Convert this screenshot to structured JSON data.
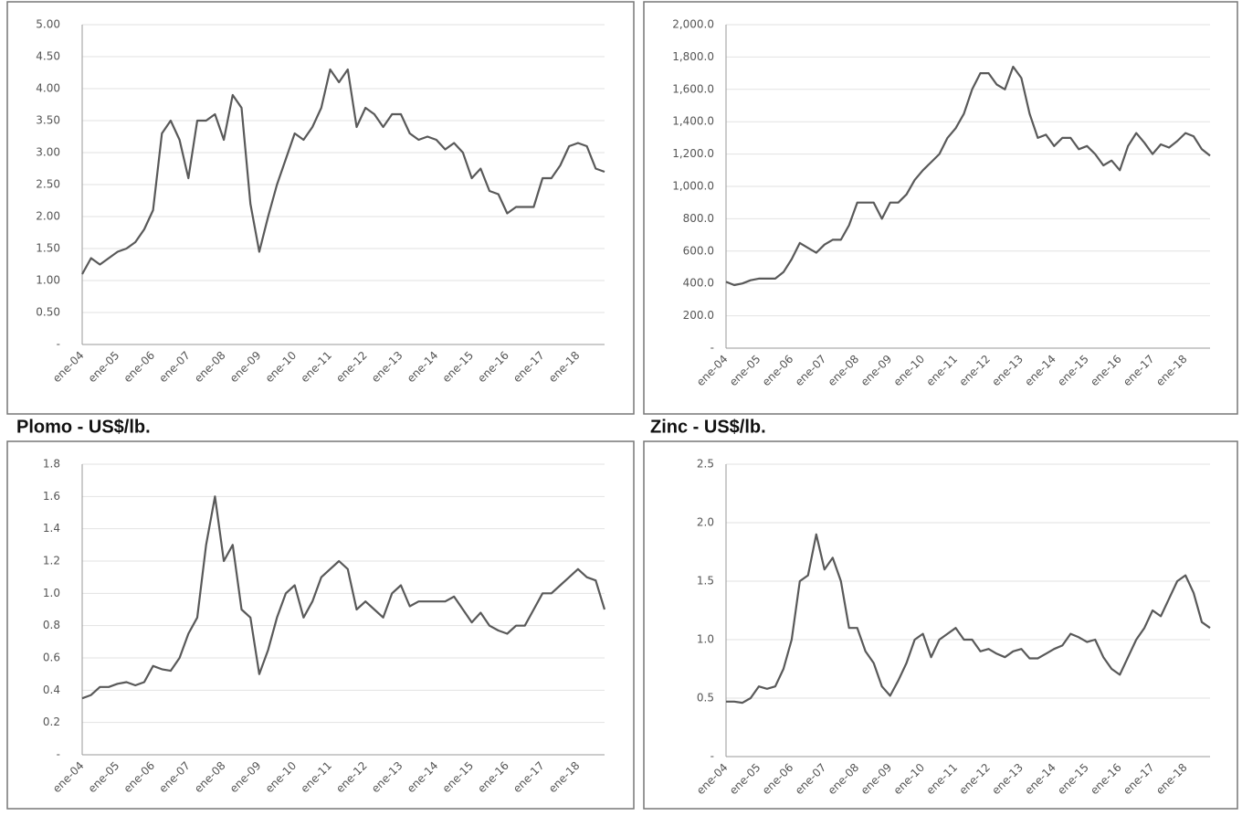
{
  "chart_data": [
    {
      "type": "line",
      "color": "#595959",
      "categories": [
        "ene-04",
        null,
        null,
        null,
        "ene-05",
        null,
        null,
        null,
        "ene-06",
        null,
        null,
        null,
        "ene-07",
        null,
        null,
        null,
        "ene-08",
        null,
        null,
        null,
        "ene-09",
        null,
        null,
        null,
        "ene-10",
        null,
        null,
        null,
        "ene-11",
        null,
        null,
        null,
        "ene-12",
        null,
        null,
        null,
        "ene-13",
        null,
        null,
        null,
        "ene-14",
        null,
        null,
        null,
        "ene-15",
        null,
        null,
        null,
        "ene-16",
        null,
        null,
        null,
        "ene-17",
        null,
        null,
        null,
        "ene-18",
        null,
        null,
        null
      ],
      "values": [
        1.1,
        1.35,
        1.25,
        1.35,
        1.45,
        1.5,
        1.6,
        1.8,
        2.1,
        3.3,
        3.5,
        3.2,
        2.6,
        3.5,
        3.5,
        3.6,
        3.2,
        3.9,
        3.7,
        2.2,
        1.45,
        2.0,
        2.5,
        2.9,
        3.3,
        3.2,
        3.4,
        3.7,
        4.3,
        4.1,
        4.3,
        3.4,
        3.7,
        3.6,
        3.4,
        3.6,
        3.6,
        3.3,
        3.2,
        3.25,
        3.2,
        3.05,
        3.15,
        3.0,
        2.6,
        2.75,
        2.4,
        2.35,
        2.05,
        2.15,
        2.15,
        2.15,
        2.6,
        2.6,
        2.8,
        3.1,
        3.15,
        3.1,
        2.75,
        2.7
      ],
      "ylim": [
        0,
        5
      ],
      "grid": true,
      "yticks": [
        {
          "value": 0,
          "label": "-"
        },
        {
          "value": 0.5,
          "label": "0.50"
        },
        {
          "value": 1,
          "label": "1.00"
        },
        {
          "value": 1.5,
          "label": "1.50"
        },
        {
          "value": 2,
          "label": "2.00"
        },
        {
          "value": 2.5,
          "label": "2.50"
        },
        {
          "value": 3,
          "label": "3.00"
        },
        {
          "value": 3.5,
          "label": "3.50"
        },
        {
          "value": 4,
          "label": "4.00"
        },
        {
          "value": 4.5,
          "label": "4.50"
        },
        {
          "value": 5,
          "label": "5.00"
        }
      ]
    },
    {
      "type": "line",
      "color": "#595959",
      "categories": [
        "ene-04",
        null,
        null,
        null,
        "ene-05",
        null,
        null,
        null,
        "ene-06",
        null,
        null,
        null,
        "ene-07",
        null,
        null,
        null,
        "ene-08",
        null,
        null,
        null,
        "ene-09",
        null,
        null,
        null,
        "ene-10",
        null,
        null,
        null,
        "ene-11",
        null,
        null,
        null,
        "ene-12",
        null,
        null,
        null,
        "ene-13",
        null,
        null,
        null,
        "ene-14",
        null,
        null,
        null,
        "ene-15",
        null,
        null,
        null,
        "ene-16",
        null,
        null,
        null,
        "ene-17",
        null,
        null,
        null,
        "ene-18",
        null,
        null,
        null
      ],
      "values": [
        410,
        390,
        400,
        420,
        430,
        430,
        430,
        470,
        550,
        650,
        620,
        590,
        640,
        670,
        670,
        760,
        900,
        900,
        900,
        800,
        900,
        900,
        950,
        1040,
        1100,
        1150,
        1200,
        1300,
        1360,
        1450,
        1600,
        1700,
        1700,
        1630,
        1600,
        1740,
        1670,
        1450,
        1300,
        1320,
        1250,
        1300,
        1300,
        1230,
        1250,
        1200,
        1130,
        1160,
        1100,
        1250,
        1330,
        1270,
        1200,
        1260,
        1240,
        1280,
        1330,
        1310,
        1230,
        1190
      ],
      "ylim": [
        0,
        2000
      ],
      "grid": true,
      "yticks": [
        {
          "value": 0,
          "label": "-"
        },
        {
          "value": 200,
          "label": "200.0"
        },
        {
          "value": 400,
          "label": "400.0"
        },
        {
          "value": 600,
          "label": "600.0"
        },
        {
          "value": 800,
          "label": "800.0"
        },
        {
          "value": 1000,
          "label": "1,000.0"
        },
        {
          "value": 1200,
          "label": "1,200.0"
        },
        {
          "value": 1400,
          "label": "1,400.0"
        },
        {
          "value": 1600,
          "label": "1,600.0"
        },
        {
          "value": 1800,
          "label": "1,800.0"
        },
        {
          "value": 2000,
          "label": "2,000.0"
        }
      ]
    },
    {
      "type": "line",
      "color": "#595959",
      "title": "Plomo - US$/lb.",
      "categories": [
        "ene-04",
        null,
        null,
        null,
        "ene-05",
        null,
        null,
        null,
        "ene-06",
        null,
        null,
        null,
        "ene-07",
        null,
        null,
        null,
        "ene-08",
        null,
        null,
        null,
        "ene-09",
        null,
        null,
        null,
        "ene-10",
        null,
        null,
        null,
        "ene-11",
        null,
        null,
        null,
        "ene-12",
        null,
        null,
        null,
        "ene-13",
        null,
        null,
        null,
        "ene-14",
        null,
        null,
        null,
        "ene-15",
        null,
        null,
        null,
        "ene-16",
        null,
        null,
        null,
        "ene-17",
        null,
        null,
        null,
        "ene-18",
        null,
        null,
        null
      ],
      "values": [
        0.35,
        0.37,
        0.42,
        0.42,
        0.44,
        0.45,
        0.43,
        0.45,
        0.55,
        0.53,
        0.52,
        0.6,
        0.75,
        0.85,
        1.3,
        1.6,
        1.2,
        1.3,
        0.9,
        0.85,
        0.5,
        0.65,
        0.85,
        1.0,
        1.05,
        0.85,
        0.95,
        1.1,
        1.15,
        1.2,
        1.15,
        0.9,
        0.95,
        0.9,
        0.85,
        1.0,
        1.05,
        0.92,
        0.95,
        0.95,
        0.95,
        0.95,
        0.98,
        0.9,
        0.82,
        0.88,
        0.8,
        0.77,
        0.75,
        0.8,
        0.8,
        0.9,
        1.0,
        1.0,
        1.05,
        1.1,
        1.15,
        1.1,
        1.08,
        0.9
      ],
      "ylim": [
        0,
        1.8
      ],
      "grid": true,
      "yticks": [
        {
          "value": 0,
          "label": "-"
        },
        0.2,
        0.4,
        0.6,
        0.8,
        {
          "value": 1,
          "label": "1.0"
        },
        1.2,
        1.4,
        1.6,
        1.8
      ]
    },
    {
      "type": "line",
      "color": "#595959",
      "title": "Zinc - US$/lb.",
      "categories": [
        "ene-04",
        null,
        null,
        null,
        "ene-05",
        null,
        null,
        null,
        "ene-06",
        null,
        null,
        null,
        "ene-07",
        null,
        null,
        null,
        "ene-08",
        null,
        null,
        null,
        "ene-09",
        null,
        null,
        null,
        "ene-10",
        null,
        null,
        null,
        "ene-11",
        null,
        null,
        null,
        "ene-12",
        null,
        null,
        null,
        "ene-13",
        null,
        null,
        null,
        "ene-14",
        null,
        null,
        null,
        "ene-15",
        null,
        null,
        null,
        "ene-16",
        null,
        null,
        null,
        "ene-17",
        null,
        null,
        null,
        "ene-18",
        null,
        null,
        null
      ],
      "values": [
        0.47,
        0.47,
        0.46,
        0.5,
        0.6,
        0.58,
        0.6,
        0.75,
        1.0,
        1.5,
        1.55,
        1.9,
        1.6,
        1.7,
        1.5,
        1.1,
        1.1,
        0.9,
        0.8,
        0.6,
        0.52,
        0.65,
        0.8,
        1.0,
        1.05,
        0.85,
        1.0,
        1.05,
        1.1,
        1.0,
        1.0,
        0.9,
        0.92,
        0.88,
        0.85,
        0.9,
        0.92,
        0.84,
        0.84,
        0.88,
        0.92,
        0.95,
        1.05,
        1.02,
        0.98,
        1.0,
        0.85,
        0.75,
        0.7,
        0.85,
        1.0,
        1.1,
        1.25,
        1.2,
        1.35,
        1.5,
        1.55,
        1.4,
        1.15,
        1.1
      ],
      "ylim": [
        0,
        2.5
      ],
      "grid": true,
      "yticks": [
        {
          "value": 0,
          "label": "-"
        },
        0.5,
        {
          "value": 1,
          "label": "1.0"
        },
        1.5,
        {
          "value": 2,
          "label": "2.0"
        },
        2.5
      ]
    }
  ]
}
